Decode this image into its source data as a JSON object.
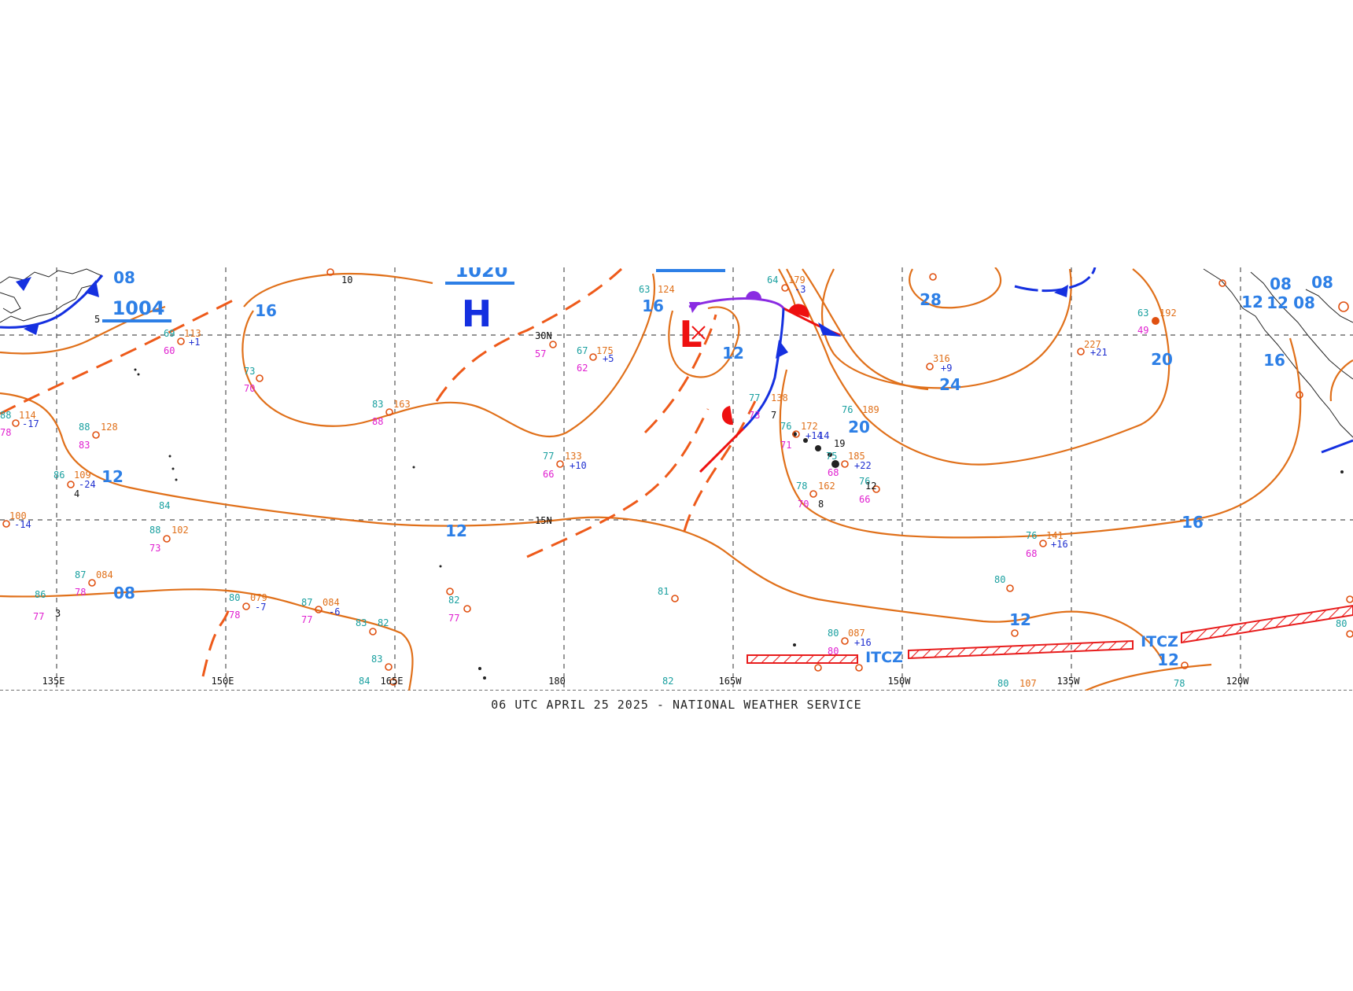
{
  "footer": "06 UTC APRIL 25 2025 - NATIONAL WEATHER SERVICE",
  "colors": {
    "isobar": "#e0701a",
    "trough": "#ee5a1a",
    "cold_front": "#1530e0",
    "warm_front": "#ee1010",
    "occluded_front": "#8a2be2",
    "isobar_label": "#2d7fe6",
    "itcz": "#e81c1c"
  },
  "longitudes": [
    "135E",
    "150E",
    "165E",
    "180",
    "165W",
    "150W",
    "135W",
    "120W"
  ],
  "latitudes": [
    "30N",
    "15N"
  ],
  "pressure_centers": [
    {
      "type": "H",
      "value": "1020"
    },
    {
      "type": "L",
      "value": ""
    }
  ],
  "high_center_label": "H",
  "low_center_label": "L",
  "boxed_labels": [
    "1004",
    "1020"
  ],
  "isobar_labels": [
    "08",
    "16",
    "16",
    "12",
    "28",
    "24",
    "20",
    "12",
    "08",
    "16",
    "12",
    "12",
    "16",
    "12",
    "12",
    "20",
    "08",
    "08",
    "12",
    "08"
  ],
  "itcz_labels": [
    "ITCZ",
    "ITCZ"
  ],
  "stations": [
    {
      "t": "63",
      "p": "124",
      "d": "",
      "tend": ""
    },
    {
      "t": "67",
      "p": "175",
      "d": "62",
      "tend": "+5"
    },
    {
      "t": "64",
      "p": "179",
      "d": "",
      "tend": "-3"
    },
    {
      "t": "83",
      "p": "163",
      "d": "88",
      "tend": ""
    },
    {
      "t": "88",
      "p": "128",
      "d": "83",
      "tend": ""
    },
    {
      "t": "86",
      "p": "109",
      "d": "",
      "tend": "-24"
    },
    {
      "t": "77",
      "p": "133",
      "d": "66",
      "tend": "+10"
    },
    {
      "t": "77",
      "p": "138",
      "d": "73",
      "tend": ""
    },
    {
      "t": "76",
      "p": "189",
      "d": "",
      "tend": ""
    },
    {
      "t": "76",
      "p": "172",
      "d": "71",
      "tend": "+14"
    },
    {
      "t": "75",
      "p": "185",
      "d": "68",
      "tend": "+22"
    },
    {
      "t": "78",
      "p": "162",
      "d": "70",
      "tend": ""
    },
    {
      "t": "76",
      "p": "",
      "d": "66",
      "tend": ""
    },
    {
      "t": "",
      "p": "316",
      "d": "",
      "tend": "+9"
    },
    {
      "t": "",
      "p": "227",
      "d": "",
      "tend": "+21"
    },
    {
      "t": "63",
      "p": "192",
      "d": "49",
      "tend": ""
    },
    {
      "t": "76",
      "p": "141",
      "d": "68",
      "tend": "+16"
    },
    {
      "t": "87",
      "p": "084",
      "d": "78",
      "tend": ""
    },
    {
      "t": "80",
      "p": "079",
      "d": "78",
      "tend": "-7"
    },
    {
      "t": "87",
      "p": "084",
      "d": "77",
      "tend": "-6"
    },
    {
      "t": "80",
      "p": "087",
      "d": "80",
      "tend": "+16"
    },
    {
      "t": "88",
      "p": "102",
      "d": "73",
      "tend": ""
    },
    {
      "t": "",
      "p": "100",
      "d": "",
      "tend": "-14"
    },
    {
      "t": "88",
      "p": "114",
      "d": "78",
      "tend": "-17"
    },
    {
      "t": "69",
      "p": "113",
      "d": "60",
      "tend": "+1"
    },
    {
      "t": "73",
      "p": "",
      "d": "70",
      "tend": ""
    },
    {
      "t": "",
      "p": "",
      "d": "57",
      "tend": ""
    },
    {
      "t": "80",
      "p": "107",
      "d": "",
      "tend": ""
    }
  ],
  "misc_values": [
    "81",
    "82",
    "84",
    "83",
    "82",
    "83",
    "84",
    "78",
    "80",
    "80",
    "82",
    "77",
    "86",
    "77",
    "5",
    "4",
    "7",
    "8",
    "3",
    "10",
    "12",
    "19",
    "14"
  ]
}
